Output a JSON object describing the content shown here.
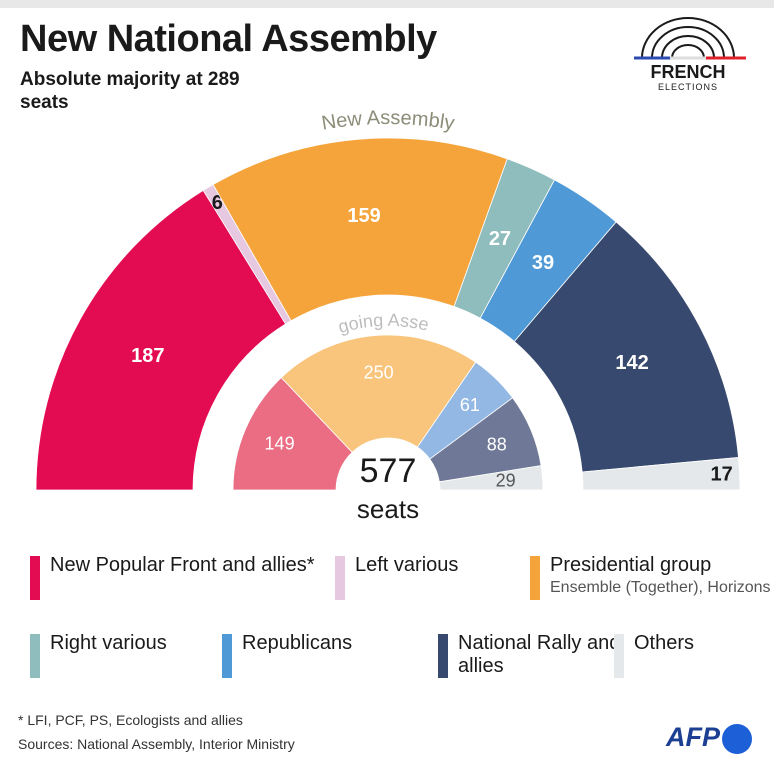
{
  "header": {
    "title": "New National Assembly",
    "subtitle": "Absolute majority at 289 seats"
  },
  "logo": {
    "word": "FRENCH",
    "sub": "ELECTIONS"
  },
  "chart_data": {
    "type": "pie",
    "variant": "parliament-semicircle",
    "total_seats": 577,
    "total_value_label": "577",
    "total_unit_label": "seats",
    "rings": [
      {
        "name": "New Assembly",
        "slices": [
          {
            "label": "New Popular Front and allies",
            "value": 187,
            "color": "#e30b52",
            "label_color": "#ffffff"
          },
          {
            "label": "Left various",
            "value": 6,
            "color": "#e6c8e0",
            "label_color": "#1a1a1a"
          },
          {
            "label": "Presidential group",
            "value": 159,
            "color": "#f5a43c",
            "label_color": "#ffffff"
          },
          {
            "label": "Right various",
            "value": 27,
            "color": "#8fbcbc",
            "label_color": "#ffffff"
          },
          {
            "label": "Republicans",
            "value": 39,
            "color": "#4e99d6",
            "label_color": "#ffffff"
          },
          {
            "label": "National Rally and allies",
            "value": 142,
            "color": "#37496e",
            "label_color": "#ffffff"
          },
          {
            "label": "Others",
            "value": 17,
            "color": "#e5e8ea",
            "label_color": "#1a1a1a"
          }
        ]
      },
      {
        "name": "Outgoing Assembly",
        "slices": [
          {
            "label": "New Popular Front and allies",
            "value": 149,
            "color": "#ea6d84",
            "label_color": "#ffffff"
          },
          {
            "label": "Presidential group",
            "value": 250,
            "color": "#f9c47b",
            "label_color": "#ffffff"
          },
          {
            "label": "Republicans",
            "value": 61,
            "color": "#93b8e3",
            "label_color": "#ffffff"
          },
          {
            "label": "National Rally and allies",
            "value": 88,
            "color": "#6f7896",
            "label_color": "#ffffff"
          },
          {
            "label": "Others",
            "value": 29,
            "color": "#e5e8ea",
            "label_color": "#555555"
          }
        ]
      }
    ]
  },
  "legend": [
    {
      "label": "New Popular Front and allies*",
      "sub": "",
      "color": "#e30b52"
    },
    {
      "label": "Left various",
      "sub": "",
      "color": "#e6c8e0"
    },
    {
      "label": "Presidential group",
      "sub": "Ensemble (Together), Horizons",
      "color": "#f5a43c"
    },
    {
      "label": "Right various",
      "sub": "",
      "color": "#8fbcbc"
    },
    {
      "label": "Republicans",
      "sub": "",
      "color": "#4e99d6"
    },
    {
      "label": "National Rally and allies",
      "sub": "",
      "color": "#37496e"
    },
    {
      "label": "Others",
      "sub": "",
      "color": "#e5e8ea"
    }
  ],
  "footer": {
    "footnote": "* LFI, PCF, PS, Ecologists and allies",
    "sources": "Sources: National Assembly, Interior Ministry",
    "brand": "AFP"
  }
}
